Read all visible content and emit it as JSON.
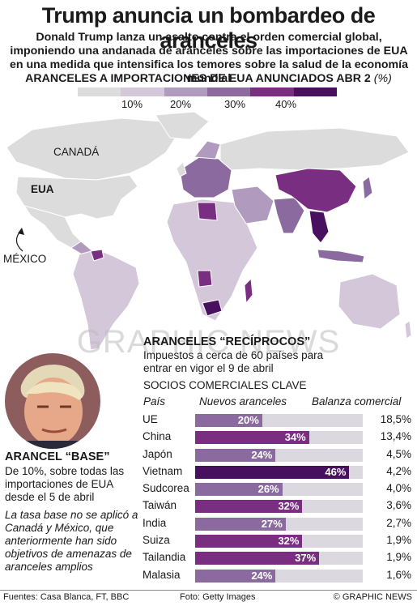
{
  "header": {
    "title": "Trump anuncia un bombardeo de aranceles",
    "subtitle": "Donald Trump lanza un asalto contra el orden comercial global, imponiendo una andanada de aranceles sobre las importaciones de EUA en una medida que intensifica los temores sobre la salud de la economía mundial"
  },
  "legend": {
    "title": "ARANCELES A IMPORTACIONES DE EUA ANUNCIADOS ABR 2",
    "unit": "(%)",
    "colors": [
      "#dcdcdc",
      "#d4c7da",
      "#b09abd",
      "#8a6a9f",
      "#7a2e82",
      "#4a1060"
    ],
    "ticks": [
      "10%",
      "20%",
      "30%",
      "40%"
    ]
  },
  "map": {
    "labels": {
      "canada": "CANADÁ",
      "usa": "EUA",
      "mexico": "MÉXICO"
    },
    "watermark": "GRAPHIC NEWS"
  },
  "base": {
    "title": "ARANCEL “BASE”",
    "desc": "De 10%, sobre todas las importaciones de EUA desde el 5 de abril",
    "note": "La tasa base no se aplicó a Canadá y México, que anterior­mente han sido objetivos de amenazas de aranceles amplios"
  },
  "reciprocal": {
    "title": "ARANCELES “RECÍPROCOS”",
    "desc": "Impuestos a cerca de 60 países para entrar en vigor el 9 de abril",
    "partners_title": "SOCIOS COMERCIALES CLAVE",
    "col_country": "País",
    "col_tariff": "Nuevos aranceles",
    "col_balance": "Balanza comercial"
  },
  "chart_data": {
    "type": "bar",
    "categories": [
      "UE",
      "China",
      "Japón",
      "Vietnam",
      "Sudcorea",
      "Taiwán",
      "India",
      "Suiza",
      "Tailandia",
      "Malasia"
    ],
    "values": [
      20,
      34,
      24,
      46,
      26,
      32,
      27,
      32,
      37,
      24
    ],
    "value_labels": [
      "20%",
      "34%",
      "24%",
      "46%",
      "26%",
      "32%",
      "27%",
      "32%",
      "37%",
      "24%"
    ],
    "balance": [
      "18,5%",
      "13,4%",
      "4,5%",
      "4,2%",
      "4,0%",
      "3,6%",
      "2,7%",
      "1,9%",
      "1,9%",
      "1,6%"
    ],
    "xlim": [
      0,
      50
    ],
    "colors": {
      "20-29": "#8a6a9f",
      "30-39": "#7a2e82",
      "40+": "#4a1060"
    }
  },
  "footer": {
    "sources": "Fuentes: Casa Blanca, FT, BBC",
    "photo": "Foto: Getty Images",
    "credit": "© GRAPHIC NEWS"
  }
}
